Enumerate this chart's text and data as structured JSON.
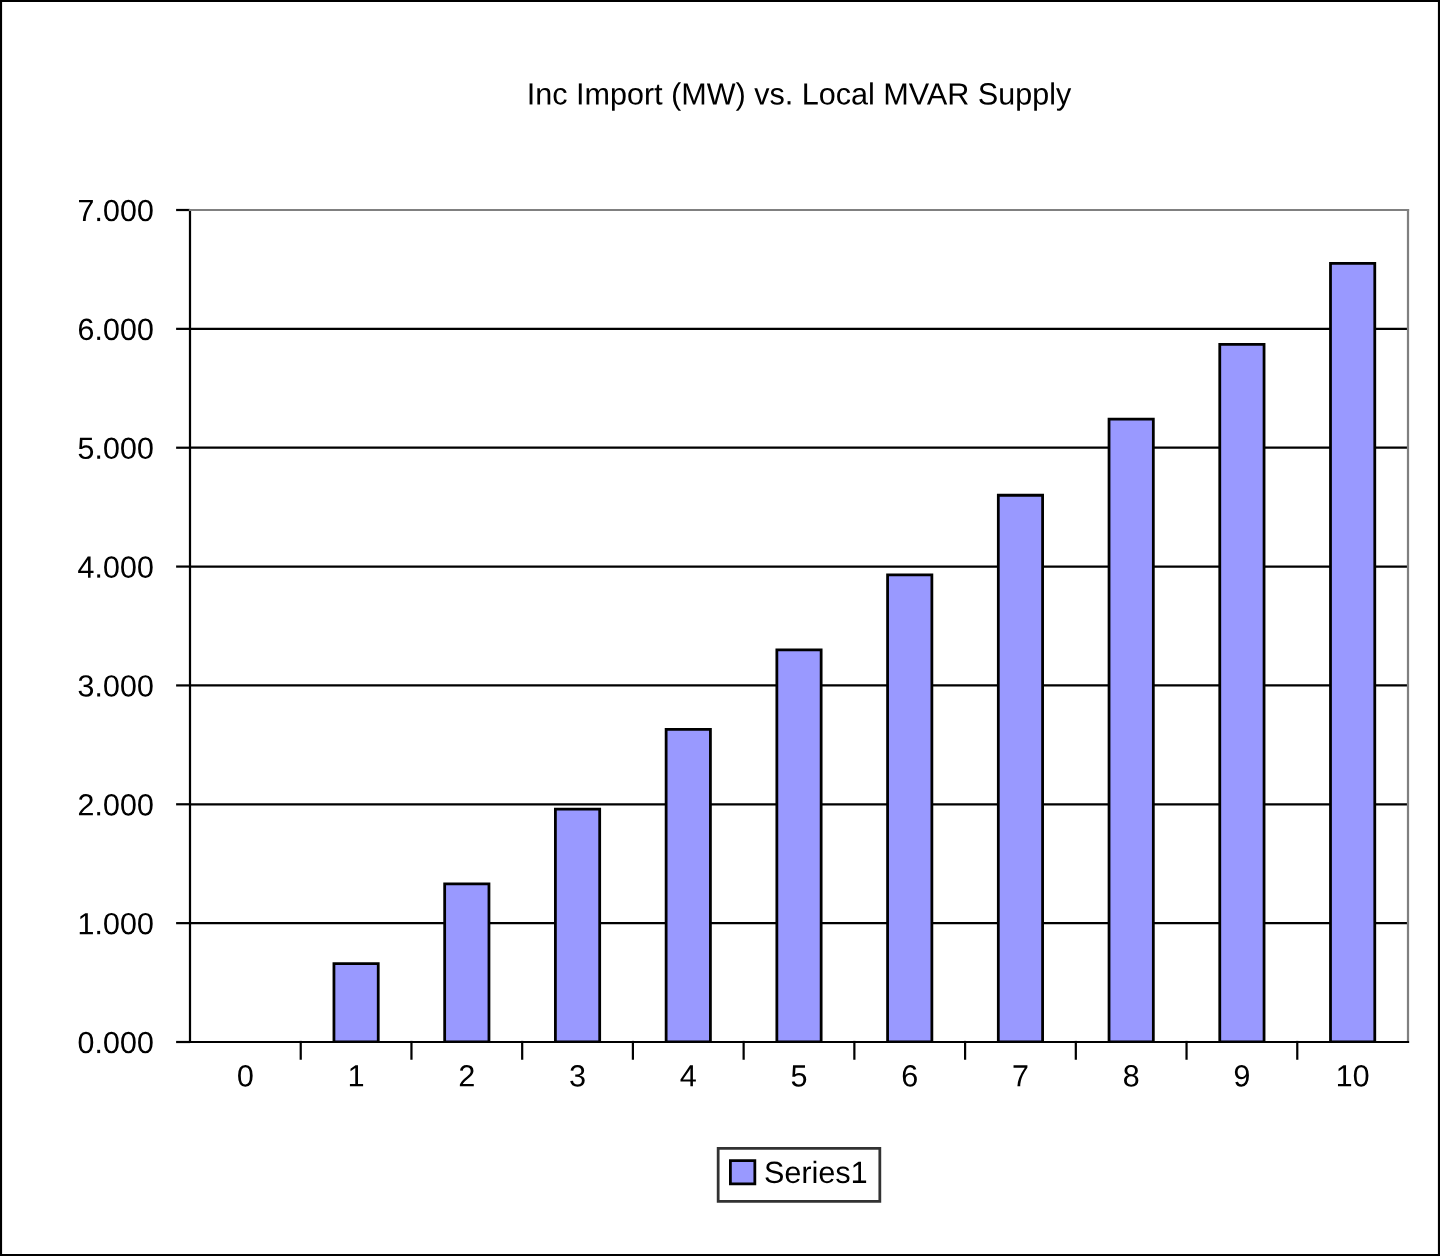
{
  "chart_data": {
    "type": "bar",
    "title": "Inc Import (MW) vs. Local MVAR Supply",
    "categories": [
      "0",
      "1",
      "2",
      "3",
      "4",
      "5",
      "6",
      "7",
      "8",
      "9",
      "10"
    ],
    "series": [
      {
        "name": "Series1",
        "color": "#9999ff",
        "values": [
          0,
          0.66,
          1.33,
          1.96,
          2.63,
          3.3,
          3.93,
          4.6,
          5.24,
          5.87,
          6.55
        ]
      }
    ],
    "ylim": [
      0,
      7
    ],
    "yticks": [
      {
        "value": 0,
        "label": "0.000"
      },
      {
        "value": 1,
        "label": "1.000"
      },
      {
        "value": 2,
        "label": "2.000"
      },
      {
        "value": 3,
        "label": "3.000"
      },
      {
        "value": 4,
        "label": "4.000"
      },
      {
        "value": 5,
        "label": "5.000"
      },
      {
        "value": 6,
        "label": "6.000"
      },
      {
        "value": 7,
        "label": "7.000"
      }
    ],
    "grid": "y",
    "legend": "bottom"
  }
}
